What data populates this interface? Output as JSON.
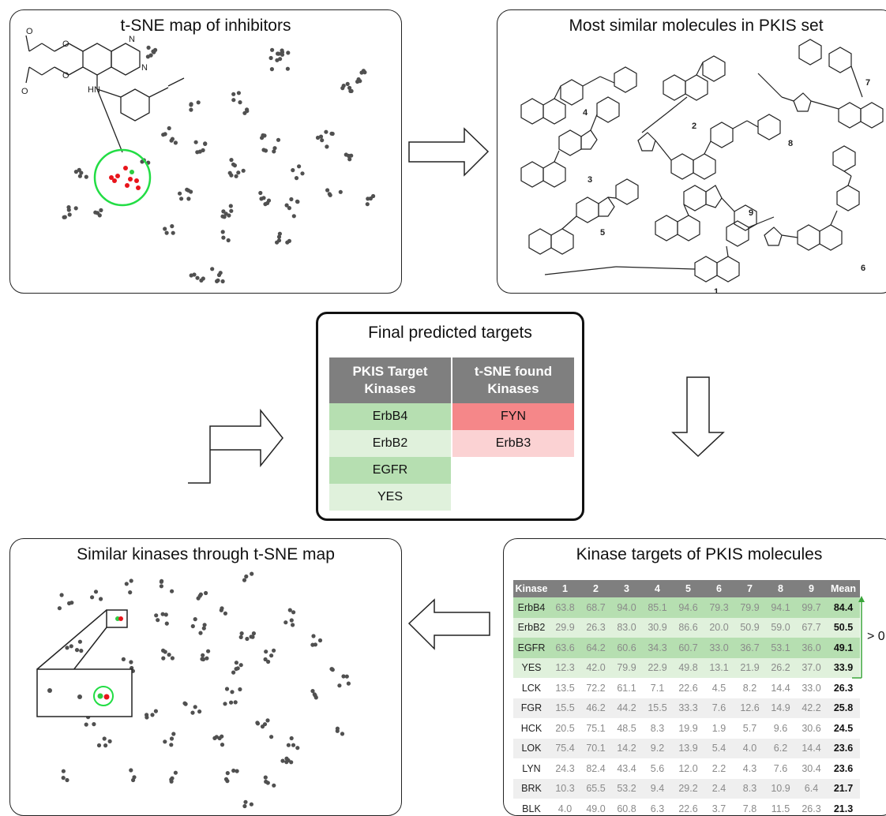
{
  "panels": {
    "tsne_inhibitors": {
      "title": "t-SNE map of inhibitors"
    },
    "similar_molecules": {
      "title": "Most similar molecules in PKIS set",
      "labels": [
        "4",
        "2",
        "7",
        "3",
        "8",
        "5",
        "9",
        "6",
        "1"
      ]
    },
    "final_targets": {
      "title": "Final predicted targets",
      "col1_header": [
        "PKIS Target",
        "Kinases"
      ],
      "col2_header": [
        "t-SNE found",
        "Kinases"
      ],
      "col1": [
        "ErbB4",
        "ErbB2",
        "EGFR",
        "YES"
      ],
      "col2": [
        "FYN",
        "ErbB3"
      ],
      "colors": {
        "green_dark": "#b6dfb1",
        "green_light": "#e0f1dc",
        "red_dark": "#f58789",
        "red_light": "#fbd2d3",
        "header": "#7f7f7f"
      }
    },
    "similar_kinases": {
      "title": "Similar kinases through t-SNE map"
    },
    "kinase_targets": {
      "title": "Kinase targets of PKIS molecules",
      "headers": [
        "Kinase",
        "1",
        "2",
        "3",
        "4",
        "5",
        "6",
        "7",
        "8",
        "9",
        "Mean"
      ],
      "rows": [
        {
          "name": "ErbB4",
          "values": [
            "63.8",
            "68.7",
            "94.0",
            "85.1",
            "94.6",
            "79.3",
            "79.9",
            "94.1",
            "99.7"
          ],
          "mean": "84.4"
        },
        {
          "name": "ErbB2",
          "values": [
            "29.9",
            "26.3",
            "83.0",
            "30.9",
            "86.6",
            "20.0",
            "50.9",
            "59.0",
            "67.7"
          ],
          "mean": "50.5"
        },
        {
          "name": "EGFR",
          "values": [
            "63.6",
            "64.2",
            "60.6",
            "34.3",
            "60.7",
            "33.0",
            "36.7",
            "53.1",
            "36.0"
          ],
          "mean": "49.1"
        },
        {
          "name": "YES",
          "values": [
            "12.3",
            "42.0",
            "79.9",
            "22.9",
            "49.8",
            "13.1",
            "21.9",
            "26.2",
            "37.0"
          ],
          "mean": "33.9"
        },
        {
          "name": "LCK",
          "values": [
            "13.5",
            "72.2",
            "61.1",
            "7.1",
            "22.6",
            "4.5",
            "8.2",
            "14.4",
            "33.0"
          ],
          "mean": "26.3"
        },
        {
          "name": "FGR",
          "values": [
            "15.5",
            "46.2",
            "44.2",
            "15.5",
            "33.3",
            "7.6",
            "12.6",
            "14.9",
            "42.2"
          ],
          "mean": "25.8"
        },
        {
          "name": "HCK",
          "values": [
            "20.5",
            "75.1",
            "48.5",
            "8.3",
            "19.9",
            "1.9",
            "5.7",
            "9.6",
            "30.6"
          ],
          "mean": "24.5"
        },
        {
          "name": "LOK",
          "values": [
            "75.4",
            "70.1",
            "14.2",
            "9.2",
            "13.9",
            "5.4",
            "4.0",
            "6.2",
            "14.4"
          ],
          "mean": "23.6"
        },
        {
          "name": "LYN",
          "values": [
            "24.3",
            "82.4",
            "43.4",
            "5.6",
            "12.0",
            "2.2",
            "4.3",
            "7.6",
            "30.4"
          ],
          "mean": "23.6"
        },
        {
          "name": "BRK",
          "values": [
            "10.3",
            "65.5",
            "53.2",
            "9.4",
            "29.2",
            "2.4",
            "8.3",
            "10.9",
            "6.4"
          ],
          "mean": "21.7"
        },
        {
          "name": "BLK",
          "values": [
            "4.0",
            "49.0",
            "60.8",
            "6.3",
            "22.6",
            "3.7",
            "7.8",
            "11.5",
            "26.3"
          ],
          "mean": "21.3"
        }
      ],
      "threshold_label": "> 0",
      "row_colors": [
        "#b6dfb1",
        "#e0f1dc",
        "#b6dfb1",
        "#e0f1dc",
        "#ffffff",
        "#efefef",
        "#ffffff",
        "#efefef",
        "#ffffff",
        "#efefef",
        "#ffffff"
      ]
    }
  },
  "colors": {
    "point": "#505050",
    "highlight_red": "#e8141b",
    "highlight_green": "#2ecc40",
    "circle": "#22dd44",
    "arrow_fill": "#ffffff",
    "arrow_stroke": "#222222"
  }
}
